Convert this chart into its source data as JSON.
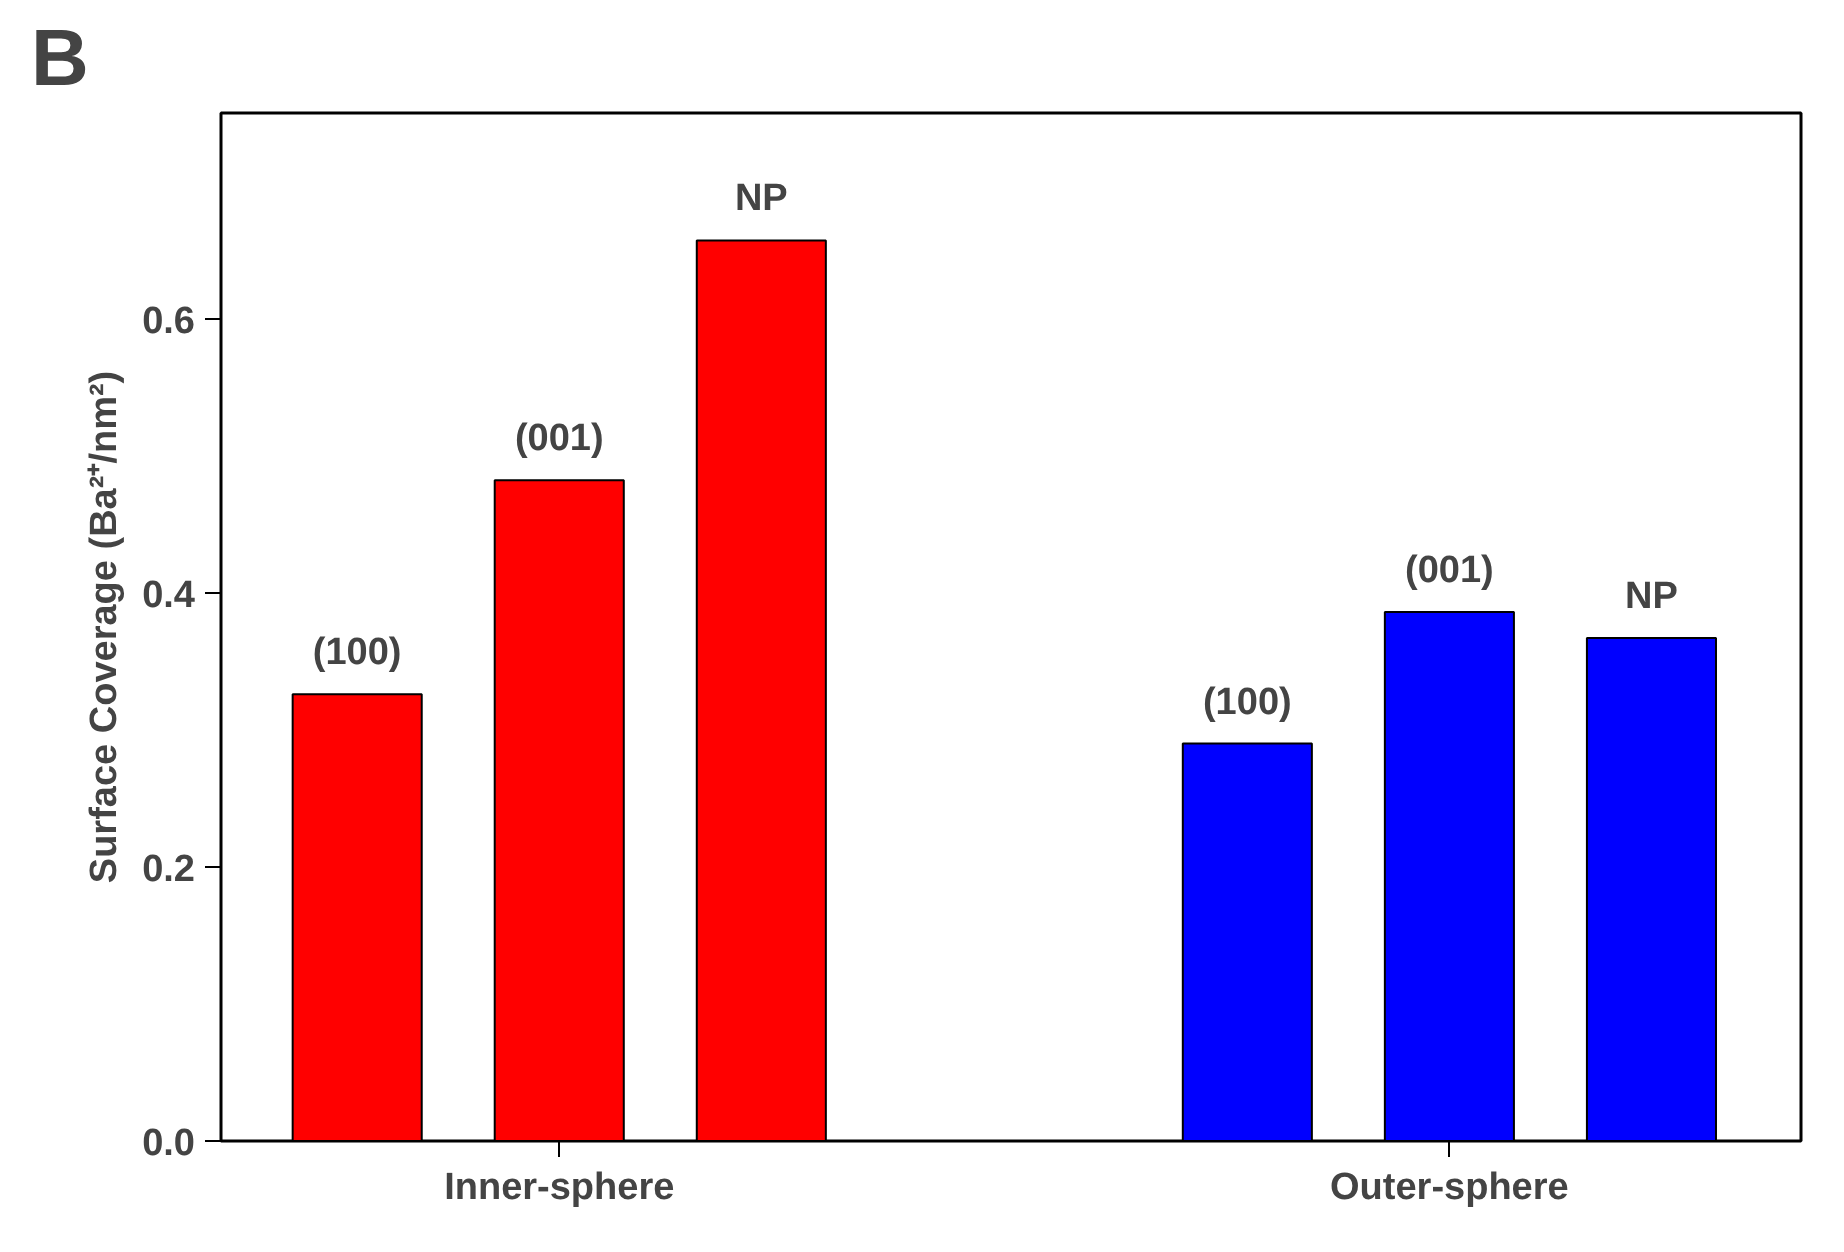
{
  "chart_data": {
    "type": "bar",
    "title": "B",
    "ylabel": "Surface Coverage (Ba²⁺/nm²)",
    "categories": [
      "Inner-sphere",
      "Outer-sphere"
    ],
    "series": [
      {
        "name": "(100)",
        "colors": [
          "#ff0000",
          "#0000ff"
        ],
        "values": [
          0.326,
          0.29
        ]
      },
      {
        "name": "(001)",
        "colors": [
          "#ff0000",
          "#0000ff"
        ],
        "values": [
          0.482,
          0.386
        ]
      },
      {
        "name": "NP",
        "colors": [
          "#ff0000",
          "#0000ff"
        ],
        "values": [
          0.657,
          0.367
        ]
      }
    ],
    "ylim": [
      0,
      0.75
    ],
    "yticks": [
      {
        "value": 0,
        "label": "0.0"
      },
      0.2,
      0.4,
      0.6
    ],
    "grid": false
  }
}
